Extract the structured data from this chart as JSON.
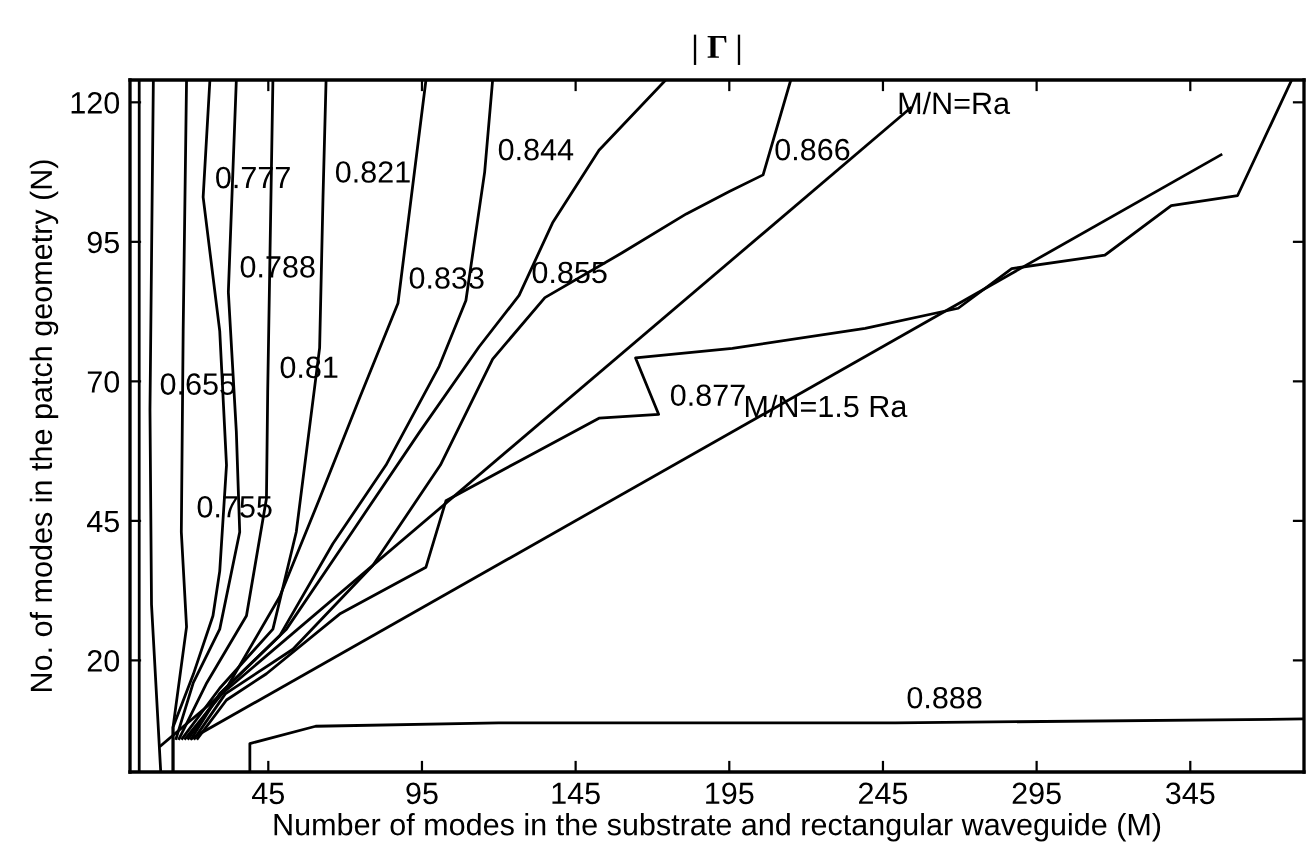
{
  "chart_data": {
    "type": "line",
    "title": "| Γ |",
    "xlabel": "Number of modes in the substrate and rectangular waveguide (M)",
    "ylabel": "No. of modes in the patch geometry (N)",
    "xlim": [
      0,
      382
    ],
    "ylim": [
      0,
      124
    ],
    "xticks": [
      45,
      95,
      145,
      195,
      245,
      295,
      345
    ],
    "yticks": [
      20,
      45,
      70,
      95,
      120
    ],
    "grid": false,
    "legend": false,
    "marker": "none",
    "line_style": "solid",
    "series": [
      {
        "color": "#000000",
        "x": [
          3,
          3,
          3,
          3
        ],
        "values": [
          124,
          60,
          20,
          0
        ]
      },
      {
        "color": "#000000",
        "x": [
          7.6,
          6.5,
          7,
          9,
          10
        ],
        "values": [
          124,
          65,
          30,
          10,
          0
        ]
      },
      {
        "color": "#000000",
        "x": [
          18.4,
          17.3,
          16.7,
          18.4,
          14,
          14
        ],
        "values": [
          124,
          79,
          43,
          26,
          8,
          0
        ]
      },
      {
        "color": "#000000",
        "x": [
          26,
          23.8,
          29.2,
          31.4,
          29.2,
          27,
          20.6,
          14,
          14
        ],
        "values": [
          124,
          103,
          79,
          55,
          36,
          28,
          17.5,
          8,
          0
        ]
      },
      {
        "color": "#000000",
        "x": [
          34.6,
          32,
          34.6,
          35.7,
          29.2,
          20.6,
          15
        ],
        "values": [
          124,
          86,
          61,
          43,
          25.6,
          16,
          6
        ]
      },
      {
        "color": "#000000",
        "x": [
          46.5,
          44.8,
          44.4,
          37.9,
          25,
          16
        ],
        "values": [
          124,
          68,
          49,
          28,
          16,
          6
        ]
      },
      {
        "color": "#000000",
        "x": [
          63.8,
          62.8,
          61.7,
          54.1,
          46.5,
          29.2,
          17
        ],
        "values": [
          124,
          103,
          76,
          43,
          25.6,
          15,
          6
        ]
      },
      {
        "color": "#000000",
        "x": [
          96.3,
          87.2,
          74.7,
          61.7,
          48.7,
          31.4,
          18
        ],
        "values": [
          124,
          84,
          67,
          49,
          31.4,
          15,
          6
        ]
      },
      {
        "color": "#000000",
        "x": [
          118,
          115.4,
          109.3,
          100.6,
          83.3,
          66,
          48.7,
          29.2,
          19
        ],
        "values": [
          124,
          107.5,
          84.5,
          72.7,
          55,
          40.9,
          24.4,
          14,
          6
        ]
      },
      {
        "color": "#000000",
        "x": [
          174.3,
          152.6,
          137.5,
          126.6,
          113.6,
          94.2,
          72.5,
          50.9,
          29.2,
          20
        ],
        "values": [
          124,
          111.4,
          98.4,
          85.4,
          76.2,
          60.9,
          43.2,
          25.6,
          14,
          6
        ]
      },
      {
        "color": "#000000",
        "x": [
          215,
          206,
          195,
          181,
          160,
          135,
          118,
          101,
          79,
          53,
          31,
          21
        ],
        "values": [
          124,
          107,
          104,
          100,
          93,
          85,
          74,
          55,
          37,
          22,
          14,
          6
        ]
      },
      {
        "color": "#000000",
        "x": [
          378,
          360.4,
          338.8,
          317.2,
          286.9,
          269.5,
          239.2,
          196,
          164.5,
          172,
          152.6,
          126.6,
          102.8,
          96.3,
          68.2,
          44.4,
          31.4,
          22
        ],
        "values": [
          124,
          103.3,
          101.5,
          92.6,
          90.2,
          83.1,
          79.5,
          75.9,
          74.2,
          64.1,
          63.4,
          55.7,
          48.6,
          36.7,
          28.3,
          17.6,
          12.9,
          6
        ]
      },
      {
        "color": "#000000",
        "x": [
          39,
          39,
          60.4,
          120,
          249,
          382
        ],
        "values": [
          0,
          5.1,
          8.2,
          8.8,
          8.8,
          9.5
        ]
      },
      {
        "color": "#000000",
        "x": [
          10,
          254
        ],
        "values": [
          4.7,
          119
        ]
      },
      {
        "color": "#000000",
        "x": [
          20,
          355
        ],
        "values": [
          6,
          110.6
        ]
      }
    ],
    "annotations": [
      {
        "text": "0.777",
        "x": 24,
        "y": 102
      },
      {
        "text": "0.821",
        "x": 63,
        "y": 103
      },
      {
        "text": "0.844",
        "x": 116,
        "y": 107
      },
      {
        "text": "0.788",
        "x": 32,
        "y": 86
      },
      {
        "text": "0.833",
        "x": 87,
        "y": 84
      },
      {
        "text": "0.855",
        "x": 127,
        "y": 85
      },
      {
        "text": "0.81",
        "x": 45,
        "y": 68
      },
      {
        "text": "0.655",
        "x": 6,
        "y": 65
      },
      {
        "text": "0.755",
        "x": 18,
        "y": 43
      },
      {
        "text": "0.866",
        "x": 206,
        "y": 107
      },
      {
        "text": "0.877",
        "x": 172,
        "y": 63
      },
      {
        "text": "0.888",
        "x": 249,
        "y": 8.8
      },
      {
        "text": "M/N=Ra",
        "x": 246,
        "y": 115.3
      },
      {
        "text": "M/N=1.5 Ra",
        "x": 196,
        "y": 61
      }
    ]
  }
}
